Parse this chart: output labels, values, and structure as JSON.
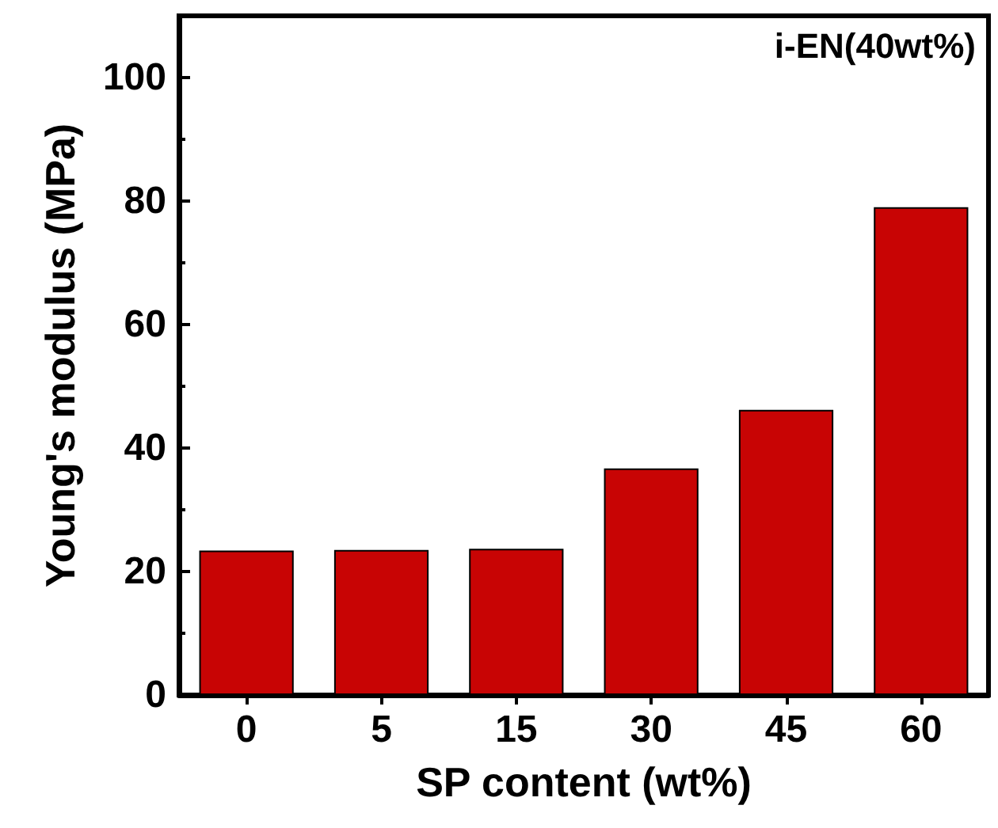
{
  "chart_data": {
    "type": "bar",
    "xlabel": "SP content (wt%)",
    "ylabel": "Young's modulus (MPa)",
    "annotations": [
      "i-EN(40wt%)"
    ],
    "categories": [
      "0",
      "5",
      "15",
      "30",
      "45",
      "60"
    ],
    "values": [
      23.4,
      23.5,
      23.7,
      36.7,
      46.2,
      79.0
    ],
    "color": "#c80404",
    "ylim": [
      0,
      110
    ],
    "yticks": [
      0,
      {
        "value": 10,
        "label": null
      },
      20,
      {
        "value": 30,
        "label": null
      },
      40,
      {
        "value": 50,
        "label": null
      },
      60,
      {
        "value": 70,
        "label": null
      },
      80,
      {
        "value": 90,
        "label": null
      },
      100
    ],
    "grid": false
  }
}
